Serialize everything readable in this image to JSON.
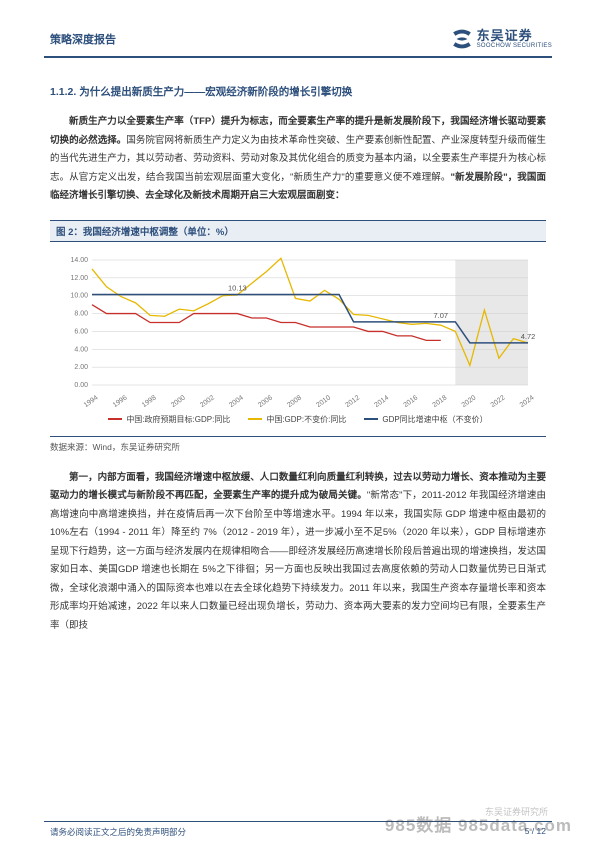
{
  "header": {
    "doc_type": "策略深度报告",
    "logo_cn": "东吴证券",
    "logo_en": "SOOCHOW SECURITIES",
    "logo_color": "#2d4f7c"
  },
  "section": {
    "number": "1.1.2.",
    "title": "为什么提出新质生产力——宏观经济新阶段的增长引擎切换"
  },
  "para1": {
    "bold1": "新质生产力以全要素生产率（TFP）提升为标志，而全要素生产率的提升是新发展阶段下，我国经济增长驱动要素切换的必然选择。",
    "text1": "国务院官网将新质生产力定义为由技术革命性突破、生产要素创新性配置、产业深度转型升级而催生的当代先进生产力，其以劳动者、劳动资料、劳动对象及其优化组合的质变为基本内涵，以全要素生产率提升为核心标志。从官方定义出发，结合我国当前宏观层面重大变化，\"新质生产力\"的重要意义便不难理解。",
    "bold2": "\"新发展阶段\"，我国面临经济增长引擎切换、去全球化及新技术周期开启三大宏观层面剧变："
  },
  "chart": {
    "caption": "图 2：我国经济增速中枢调整（单位：%）",
    "type": "line",
    "years": [
      "1994",
      "1996",
      "1998",
      "2000",
      "2002",
      "2004",
      "2006",
      "2008",
      "2010",
      "2012",
      "2014",
      "2016",
      "2018",
      "2020",
      "2022",
      "2024"
    ],
    "ylim": [
      0,
      14
    ],
    "ytick_step": 2,
    "background_color": "#ffffff",
    "grid_color": "#cccccc",
    "shade_start_year": "2019",
    "shade_color": "#e8e8e8",
    "series": [
      {
        "name": "中国:政府预期目标:GDP:同比",
        "color": "#c72f2a",
        "width": 1.3,
        "data": [
          9.0,
          8.0,
          8.0,
          8.0,
          7.0,
          7.0,
          7.0,
          8.0,
          8.0,
          8.0,
          8.0,
          7.5,
          7.5,
          7.0,
          7.0,
          6.5,
          6.5,
          6.5,
          6.5,
          6.0,
          6.0,
          5.5,
          5.5,
          5.0,
          5.0
        ]
      },
      {
        "name": "中国:GDP:不变价:同比",
        "color": "#e6b800",
        "width": 1.3,
        "data": [
          13.0,
          11.0,
          9.9,
          9.2,
          7.8,
          7.7,
          8.5,
          8.3,
          9.1,
          10.0,
          10.1,
          11.4,
          12.7,
          14.2,
          9.7,
          9.4,
          10.6,
          9.6,
          7.9,
          7.8,
          7.4,
          7.0,
          6.8,
          6.9,
          6.7,
          6.0,
          2.2,
          8.4,
          3.0,
          5.2,
          4.7
        ]
      },
      {
        "name": "GDP同比增速中枢（不变价）",
        "color": "#2d4f7c",
        "width": 1.5,
        "data": [
          10.13,
          10.13,
          10.13,
          10.13,
          10.13,
          10.13,
          10.13,
          10.13,
          10.13,
          10.13,
          10.13,
          10.13,
          10.13,
          10.13,
          10.13,
          10.13,
          10.13,
          10.13,
          7.07,
          7.07,
          7.07,
          7.07,
          7.07,
          7.07,
          7.07,
          7.07,
          4.72,
          4.72,
          4.72,
          4.72,
          4.72
        ]
      }
    ],
    "annotations": [
      {
        "label": "10.13",
        "x_idx": 10,
        "y": 10.13
      },
      {
        "label": "7.07",
        "x_idx": 24,
        "y": 7.07
      },
      {
        "label": "4.72",
        "x_idx": 30,
        "y": 4.72
      }
    ],
    "legend": [
      {
        "label": "中国:政府预期目标:GDP:同比",
        "color": "#c72f2a"
      },
      {
        "label": "中国:GDP:不变价:同比",
        "color": "#e6b800"
      },
      {
        "label": "GDP同比增速中枢（不变价）",
        "color": "#2d4f7c"
      }
    ],
    "source": "数据来源：Wind，东吴证券研究所"
  },
  "para2": {
    "bold1": "第一，内部方面看，我国经济增速中枢放缓、人口数量红利向质量红利转换，过去以劳动力增长、资本推动为主要驱动力的增长模式与新阶段不再匹配，全要素生产率的提升成为破局关键。",
    "text1": "\"新常态\"下，2011-2012 年我国经济增速由高增速向中高增速换挡，并在疫情后再一次下台阶至中等增速水平。1994 年以来，我国实际 GDP 增速中枢由最初的 10%左右（1994 - 2011 年）降至约 7%（2012 - 2019 年），进一步减小至不足5%（2020 年以来），GDP 目标增速亦呈现下行趋势，这一方面与经济发展内在规律相吻合——即经济发展经历高速增长阶段后普遍出现的增速换挡，发达国家如日本、美国GDP 增速也长期在 5%之下徘徊；另一方面也反映出我国过去高度依赖的劳动人口数量优势已日渐式微，全球化浪潮中涌入的国际资本也难以在去全球化趋势下持续发力。2011 年以来，我国生产资本存量增长率和资本形成率均开始减速，2022 年以来人口数量已经出现负增长，劳动力、资本两大要素的发力空间均已有限，全要素生产率（即技"
  },
  "footer": {
    "disclaimer": "请务必阅读正文之后的免责声明部分",
    "page": "5 / 12"
  },
  "watermark": {
    "t1": "985数据 985data.com",
    "t2": "东吴证券研究所"
  }
}
